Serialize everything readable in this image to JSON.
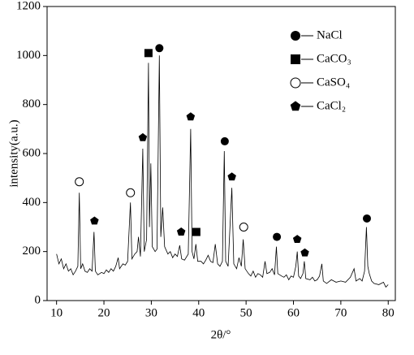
{
  "chart_data": {
    "type": "line",
    "x_label": "2θ/°",
    "y_label": "intensity(a.u.)",
    "xlim": [
      8,
      81.5
    ],
    "ylim": [
      0,
      1200
    ],
    "xticks": [
      10,
      20,
      30,
      40,
      50,
      60,
      70,
      80
    ],
    "yticks": [
      0,
      200,
      400,
      600,
      800,
      1000,
      1200
    ],
    "color": "#000000",
    "x": [
      10,
      10.5,
      11,
      11.5,
      12,
      12.5,
      13,
      13.5,
      14,
      14.5,
      14.8,
      15.1,
      15.5,
      16,
      16.5,
      17,
      17.5,
      17.9,
      18.2,
      18.7,
      19.5,
      20,
      20.5,
      21,
      21.5,
      22,
      22.5,
      23,
      23.3,
      24,
      24.5,
      25,
      25.6,
      25.9,
      26.5,
      27,
      27.3,
      27.7,
      28.2,
      28.5,
      29,
      29.4,
      29.6,
      29.9,
      30.2,
      30.8,
      31.2,
      31.7,
      32,
      32.4,
      32.8,
      33.5,
      34,
      34.5,
      35,
      35.5,
      36,
      36.4,
      37,
      37.8,
      38.3,
      38.6,
      39,
      39.4,
      39.8,
      40.5,
      41,
      41.5,
      42,
      42.5,
      43,
      43.5,
      44,
      44.5,
      45,
      45.4,
      45.7,
      46.2,
      47,
      47.4,
      48,
      48.5,
      49,
      49.4,
      49.8,
      50.5,
      51,
      51.5,
      52,
      52.5,
      53,
      53.5,
      54,
      54.4,
      55,
      55.5,
      56,
      56.4,
      56.7,
      57.5,
      58,
      58.5,
      59,
      59.5,
      60,
      60.5,
      60.8,
      61.1,
      61.5,
      62,
      62.3,
      62.6,
      63.5,
      64,
      64.5,
      65,
      65.5,
      66,
      66.3,
      67,
      68,
      69,
      70,
      71,
      72,
      72.8,
      73.2,
      74,
      74.5,
      75,
      75.4,
      75.7,
      76,
      76.5,
      77,
      78,
      79,
      79.5,
      80
    ],
    "values": [
      190,
      150,
      170,
      130,
      150,
      120,
      130,
      105,
      120,
      140,
      440,
      130,
      150,
      120,
      115,
      130,
      120,
      280,
      120,
      105,
      115,
      110,
      125,
      115,
      130,
      120,
      140,
      175,
      130,
      150,
      145,
      160,
      400,
      170,
      190,
      200,
      260,
      180,
      620,
      200,
      250,
      970,
      300,
      560,
      220,
      200,
      210,
      1000,
      260,
      380,
      220,
      190,
      200,
      175,
      190,
      180,
      225,
      170,
      165,
      190,
      700,
      200,
      170,
      230,
      160,
      160,
      150,
      165,
      185,
      160,
      155,
      230,
      150,
      140,
      160,
      610,
      160,
      140,
      460,
      150,
      130,
      175,
      140,
      250,
      130,
      110,
      100,
      120,
      95,
      110,
      105,
      95,
      160,
      110,
      115,
      130,
      105,
      220,
      110,
      100,
      95,
      105,
      85,
      100,
      95,
      140,
      200,
      100,
      90,
      110,
      160,
      90,
      85,
      95,
      80,
      85,
      100,
      150,
      80,
      70,
      85,
      75,
      80,
      75,
      95,
      130,
      80,
      90,
      80,
      120,
      300,
      140,
      110,
      80,
      70,
      65,
      75,
      55,
      65
    ],
    "series": [
      {
        "name": "NaCl",
        "marker": "filled-circle",
        "x": [
          31.7,
          45.5,
          56.5,
          75.5
        ],
        "values": [
          1030,
          650,
          260,
          335
        ]
      },
      {
        "name": "CaCO₃",
        "marker": "square",
        "x": [
          29.4,
          39.5
        ],
        "values": [
          1010,
          280
        ]
      },
      {
        "name": "CaSO₄",
        "marker": "open-circle",
        "x": [
          14.8,
          25.6,
          49.5
        ],
        "values": [
          485,
          440,
          300
        ]
      },
      {
        "name": "CaCl₂",
        "marker": "pentagon",
        "x": [
          18,
          28.2,
          36.3,
          38.3,
          47,
          60.8,
          62.4
        ],
        "values": [
          325,
          665,
          280,
          750,
          505,
          250,
          195
        ]
      }
    ]
  }
}
